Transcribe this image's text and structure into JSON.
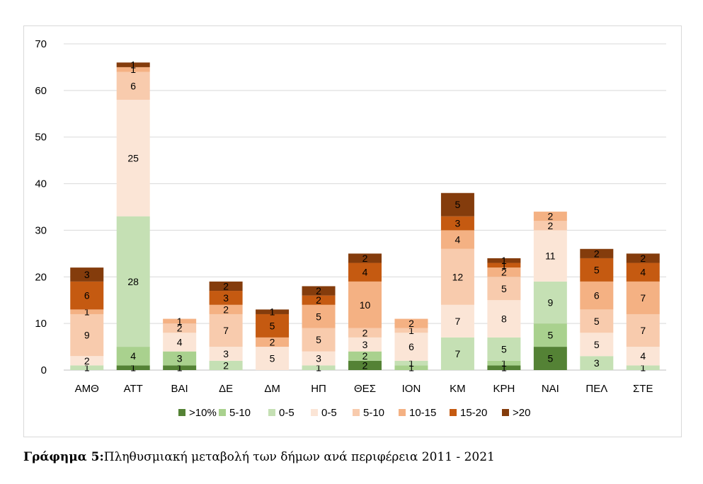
{
  "chart_data": {
    "type": "bar",
    "stacked": true,
    "categories": [
      "ΑΜΘ",
      "ΑΤΤ",
      "ΒΑΙ",
      "ΔΕ",
      "ΔΜ",
      "ΗΠ",
      "ΘΕΣ",
      "ΙΟΝ",
      "ΚΜ",
      "ΚΡΗ",
      "ΝΑΙ",
      "ΠΕΛ",
      "ΣΤΕ"
    ],
    "ylim": [
      0,
      70
    ],
    "yticks": [
      0,
      10,
      20,
      30,
      40,
      50,
      60,
      70
    ],
    "grid": true,
    "legend_position": "bottom",
    "series": [
      {
        "name": ">10%",
        "color": "#548235",
        "values": [
          0,
          1,
          1,
          0,
          0,
          0,
          2,
          0,
          0,
          1,
          5,
          0,
          0
        ],
        "labels": [
          "",
          "1",
          "1",
          "",
          "",
          "",
          "2",
          "",
          "",
          "1",
          "5",
          "",
          ""
        ]
      },
      {
        "name": "5-10",
        "color": "#a9d18e",
        "values": [
          0,
          4,
          3,
          0,
          0,
          0,
          2,
          1,
          0,
          1,
          5,
          0,
          0
        ],
        "labels": [
          "",
          "4",
          "3",
          "",
          "",
          "",
          "2",
          "1",
          "",
          "1",
          "5",
          "",
          ""
        ]
      },
      {
        "name": "0-5",
        "color": "#c5e0b4",
        "values": [
          1,
          28,
          0,
          2,
          0,
          1,
          0,
          1,
          7,
          5,
          9,
          3,
          1
        ],
        "labels": [
          "1",
          "28",
          "",
          "2",
          "",
          "1",
          "",
          "1",
          "7",
          "5",
          "9",
          "3",
          "1"
        ]
      },
      {
        "name": "0-5",
        "color": "#fbe5d6",
        "values": [
          2,
          25,
          4,
          3,
          5,
          3,
          3,
          6,
          7,
          8,
          11,
          5,
          4
        ],
        "labels": [
          "2",
          "25",
          "4",
          "3",
          "5",
          "3",
          "3",
          "6",
          "7",
          "8",
          "11",
          "5",
          "4"
        ]
      },
      {
        "name": "5-10",
        "color": "#f8cbad",
        "values": [
          9,
          6,
          2,
          7,
          0,
          5,
          2,
          1,
          12,
          5,
          2,
          5,
          7
        ],
        "labels": [
          "9",
          "6",
          "2",
          "7",
          "",
          "5",
          "2",
          "1",
          "12",
          "5",
          "2",
          "5",
          "7"
        ]
      },
      {
        "name": "10-15",
        "color": "#f4b183",
        "values": [
          1,
          1,
          1,
          2,
          2,
          5,
          10,
          2,
          4,
          2,
          2,
          6,
          7
        ],
        "labels": [
          "1",
          "1",
          "1",
          "2",
          "2",
          "5",
          "10",
          "2",
          "4",
          "2",
          "2",
          "6",
          "7"
        ]
      },
      {
        "name": "15-20",
        "color": "#c55a11",
        "values": [
          6,
          0,
          0,
          3,
          5,
          2,
          4,
          0,
          3,
          1,
          0,
          5,
          4
        ],
        "labels": [
          "6",
          "",
          "",
          "3",
          "5",
          "2",
          "4",
          "",
          "3",
          "1",
          "",
          "5",
          "4"
        ]
      },
      {
        "name": ">20",
        "color": "#843c0c",
        "values": [
          3,
          1,
          0,
          2,
          1,
          2,
          2,
          0,
          5,
          1,
          0,
          2,
          2
        ],
        "labels": [
          "3",
          "1",
          "",
          "2",
          "1",
          "2",
          "2",
          "",
          "5",
          "1",
          "",
          "2",
          "2"
        ]
      }
    ]
  },
  "caption": {
    "prefix": "Γράφημα 5:",
    "text": "Πληθυσμιακή μεταβολή των δήμων ανά περιφέρεια 2011 - 2021"
  }
}
